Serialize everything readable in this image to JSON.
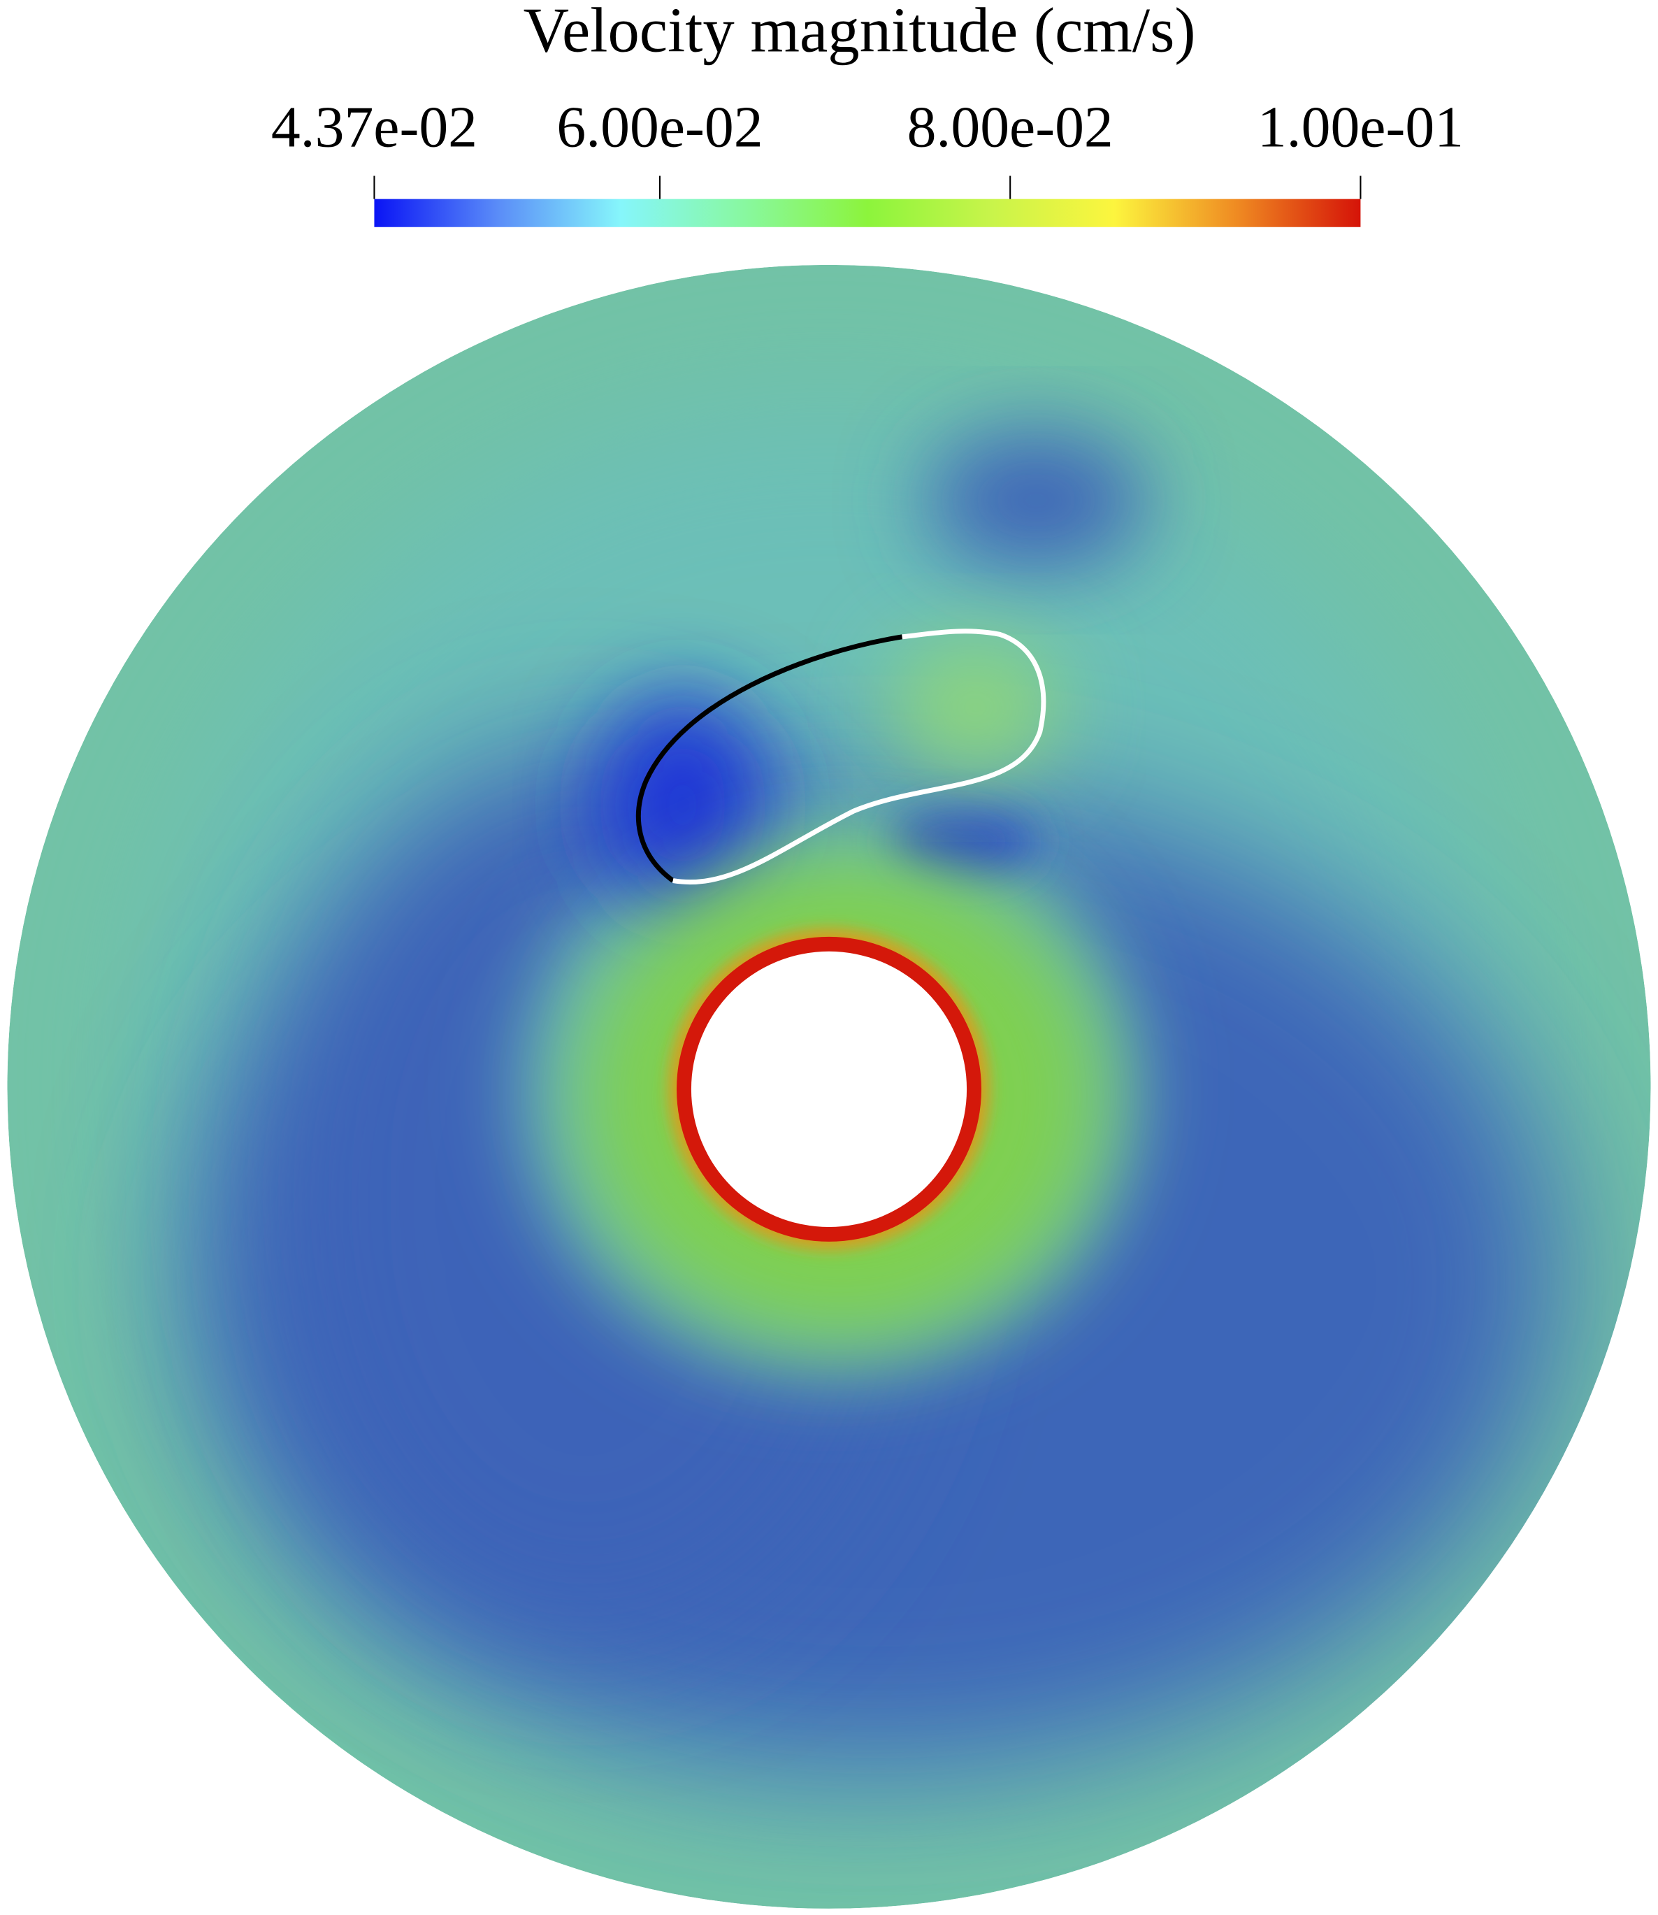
{
  "chart_data": {
    "type": "field",
    "title": "Velocity magnitude (cm/s)",
    "clim": [
      0.0437,
      0.1
    ],
    "cticks": [
      {
        "value": 0.0437,
        "label": "4.37e-02"
      },
      {
        "value": 0.06,
        "label": "6.00e-02"
      },
      {
        "value": 0.08,
        "label": "8.00e-02"
      },
      {
        "value": 0.1,
        "label": "1.00e-01"
      }
    ],
    "colormap": [
      "#0a14f5",
      "#5a8cf8",
      "#86f6fb",
      "#88f8a0",
      "#8cf43c",
      "#c8f44a",
      "#fcf53e",
      "#ef8a22",
      "#d51308"
    ]
  }
}
